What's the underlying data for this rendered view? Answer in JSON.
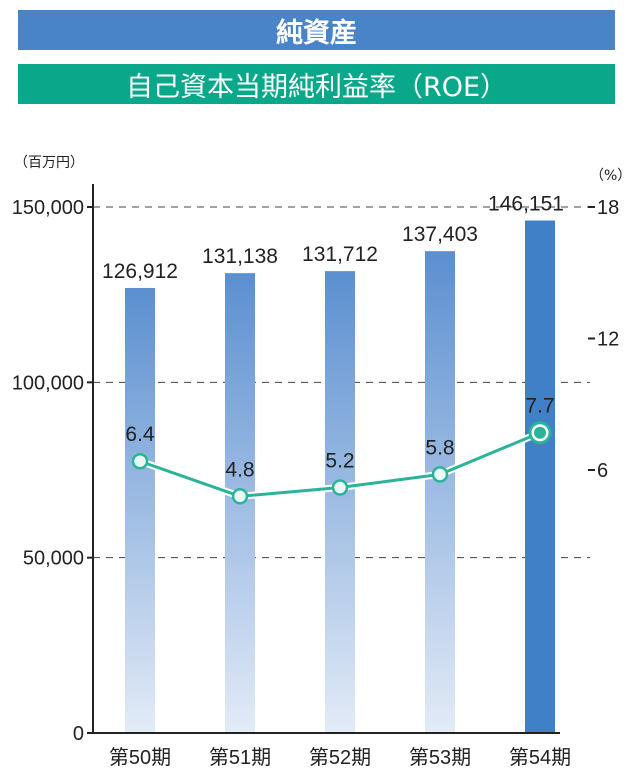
{
  "titles": {
    "main": "純資産",
    "sub": "自己資本当期純利益率（ROE）"
  },
  "colors": {
    "banner_blue": "#4a84c8",
    "banner_green": "#0aa88a",
    "bar_top": "#5b8fd0",
    "bar_bottom": "#e3ebf7",
    "bar_highlight": "#3f80c6",
    "line": "#2bb39a",
    "highlight_label": "#4a84c8"
  },
  "chart_data": {
    "type": "bar",
    "categories": [
      "第50期",
      "第51期",
      "第52期",
      "第53期",
      "第54期"
    ],
    "highlight_index": 4,
    "left_axis": {
      "unit": "（百万円）",
      "ticks": [
        "0",
        "50,000",
        "100,000",
        "150,000"
      ],
      "tick_values": [
        0,
        50000,
        100000,
        150000
      ],
      "range": [
        0,
        150000
      ]
    },
    "right_axis": {
      "unit": "（%）",
      "ticks": [
        "6",
        "12",
        "18"
      ],
      "tick_values": [
        6,
        12,
        18
      ],
      "range": [
        -6,
        18
      ]
    },
    "series": [
      {
        "type": "bar",
        "axis": "left",
        "values": [
          126912,
          131138,
          131712,
          137403,
          146151
        ],
        "labels": [
          "126,912",
          "131,138",
          "131,712",
          "137,403",
          "146,151"
        ]
      },
      {
        "type": "line",
        "axis": "right",
        "values": [
          6.4,
          4.8,
          5.2,
          5.8,
          7.7
        ],
        "labels": [
          "6.4",
          "4.8",
          "5.2",
          "5.8",
          "7.7"
        ]
      }
    ],
    "grid": "dashed"
  }
}
